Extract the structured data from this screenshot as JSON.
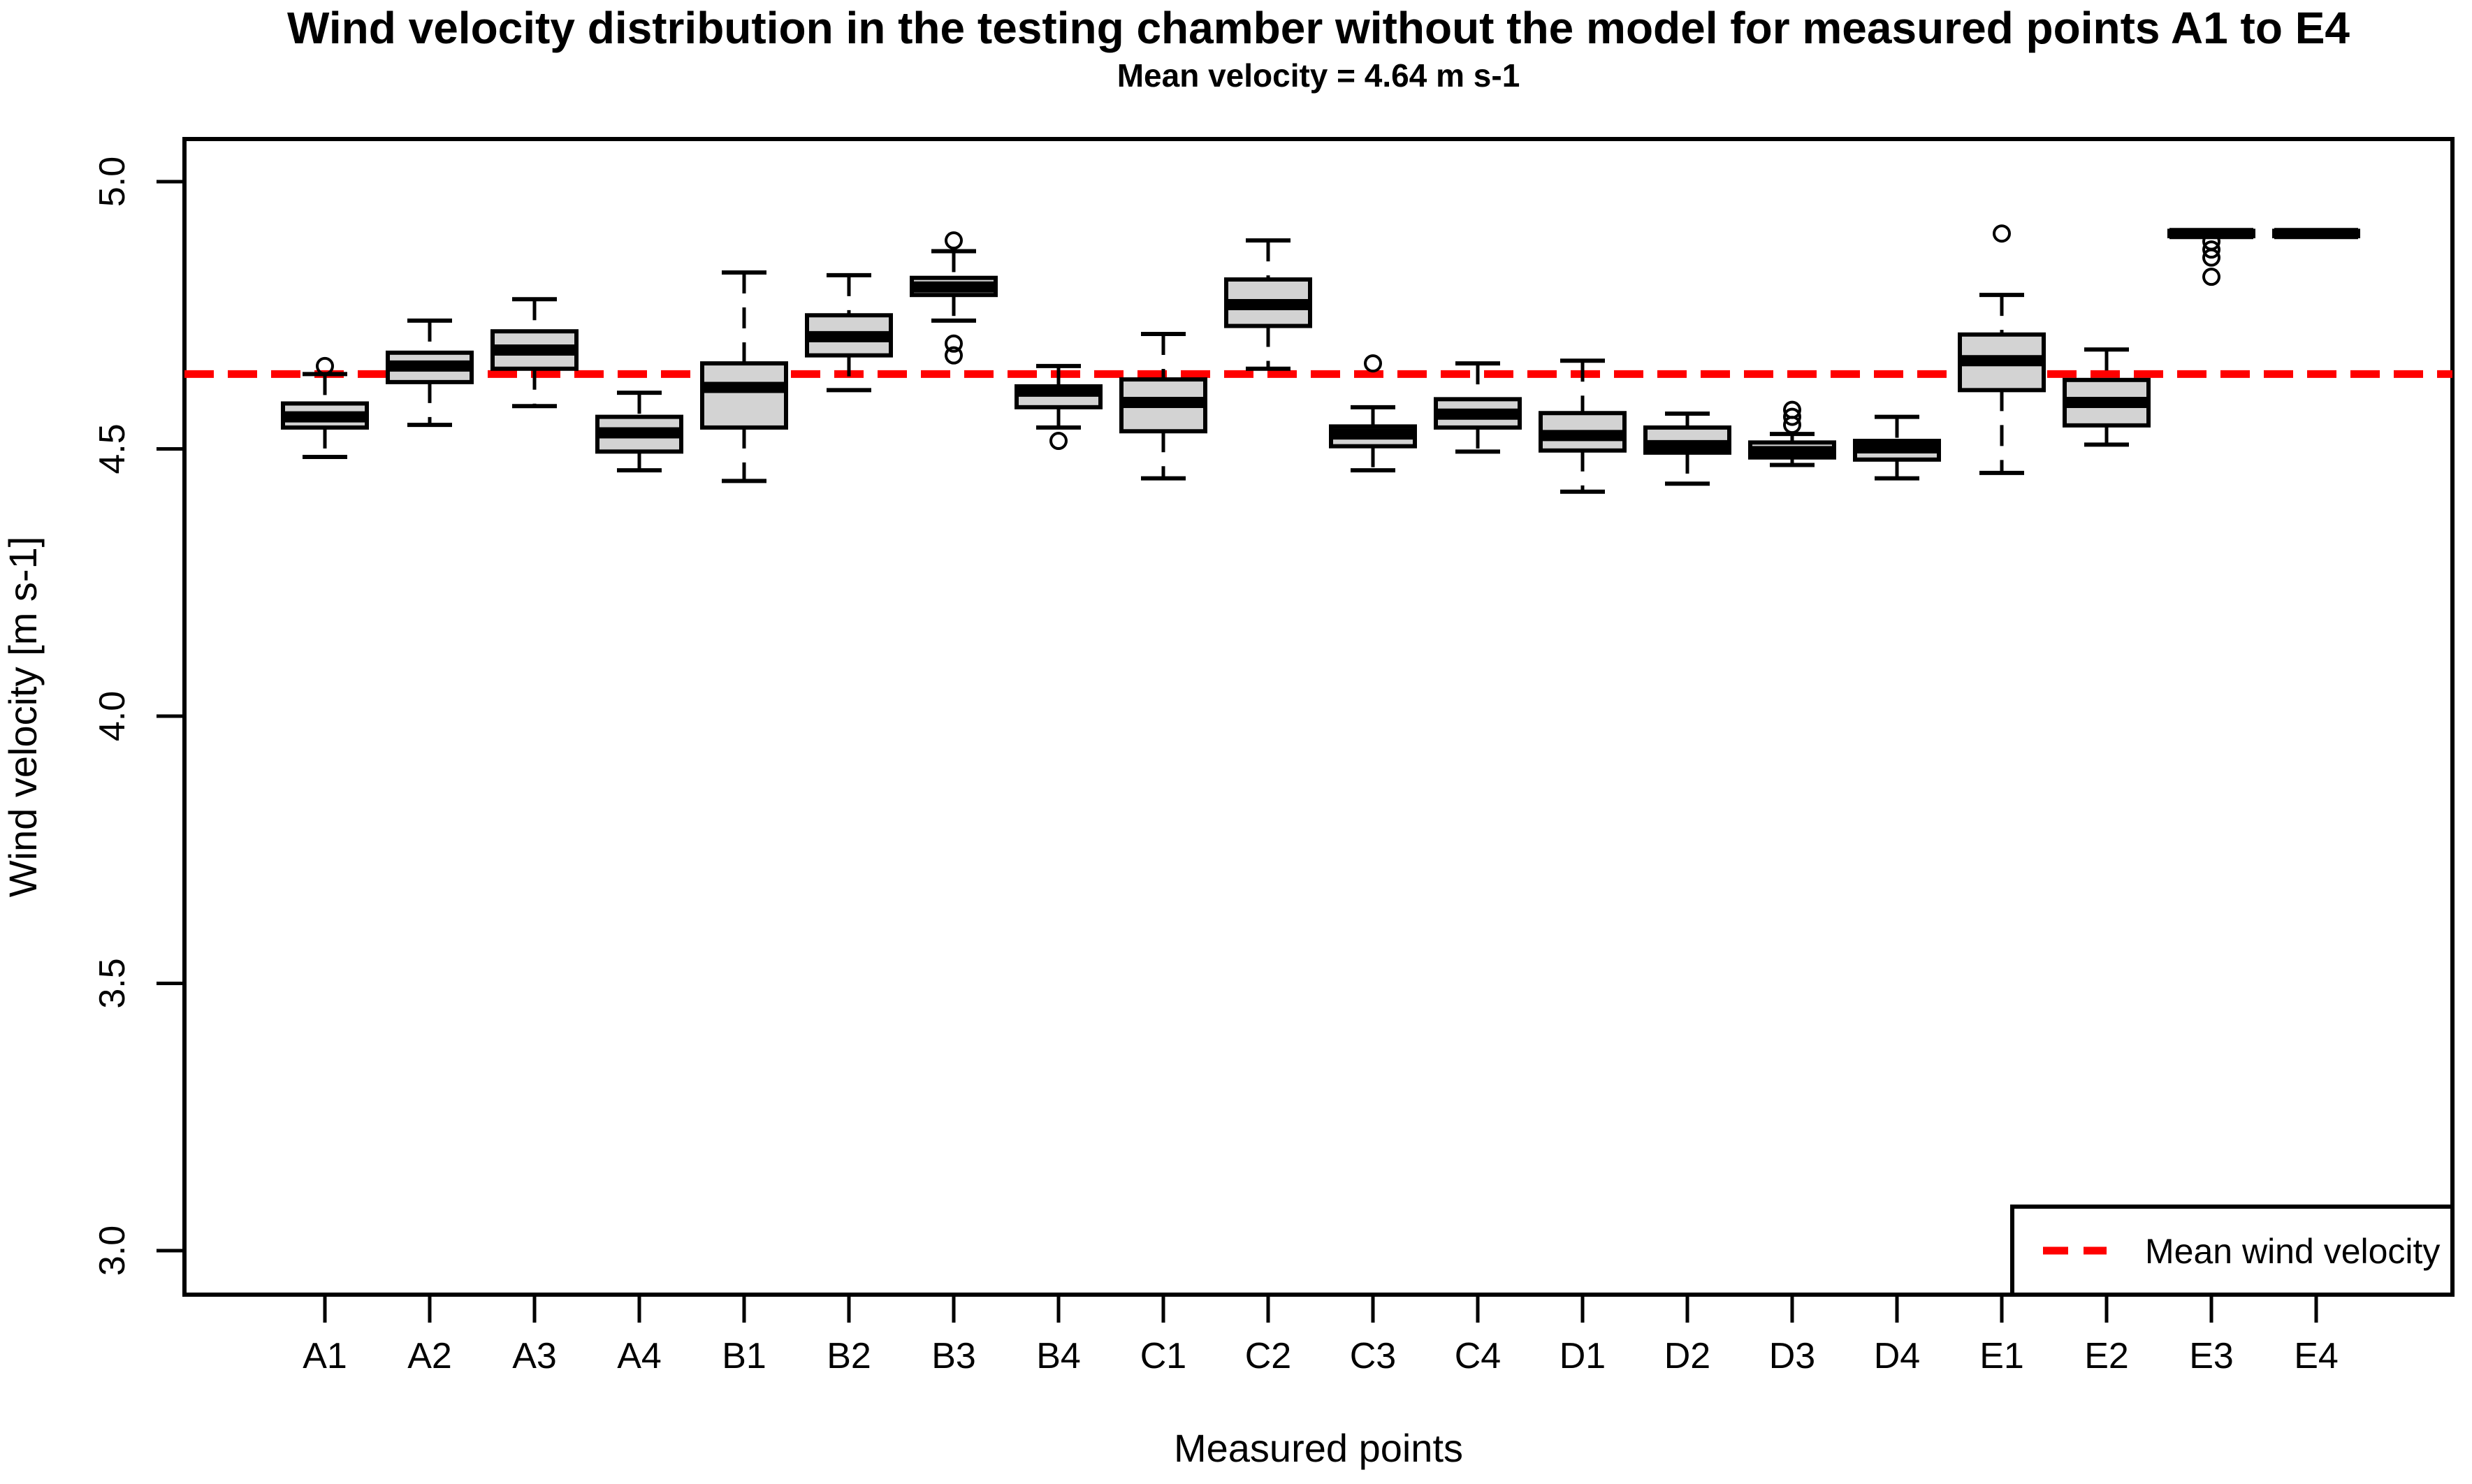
{
  "title": "Wind velocity distribution in the testing chamber without the model for measured points A1 to E4",
  "subtitle": "Mean velocity = 4.64 m s-1",
  "axes": {
    "x_label": "Measured points",
    "y_label": "Wind velocity [m s-1]",
    "y_ticks": [
      {
        "label": "5.0",
        "value": 5.0
      },
      {
        "label": "4.5",
        "value": 4.5
      },
      {
        "label": "4.0",
        "value": 4.0
      },
      {
        "label": "3.5",
        "value": 3.5
      },
      {
        "label": "3.0",
        "value": 3.0
      }
    ]
  },
  "legend": {
    "label": "Mean wind velocity",
    "line_style": "dashed",
    "position": "bottom-right"
  },
  "colors": {
    "box_fill": "#d3d3d3",
    "stroke": "#000000",
    "mean_line": "#ff0000",
    "background": "#ffffff"
  },
  "chart_data": {
    "type": "boxplot",
    "title": "Wind velocity distribution in the testing chamber without the model for measured points A1 to E4",
    "subtitle": "Mean velocity = 4.64 m s-1",
    "xlabel": "Measured points",
    "ylabel": "Wind velocity [m s-1]",
    "ylim": [
      2.92,
      5.08
    ],
    "y_tick_values": [
      3.0,
      3.5,
      4.0,
      4.5,
      5.0
    ],
    "grid": false,
    "mean_line_value": 4.64,
    "legend_position": "bottom-right",
    "categories": [
      "A1",
      "A2",
      "A3",
      "A4",
      "B1",
      "B2",
      "B3",
      "B4",
      "C1",
      "C2",
      "C3",
      "C4",
      "D1",
      "D2",
      "D3",
      "D4",
      "E1",
      "E2",
      "E3",
      "E4"
    ],
    "boxes": [
      {
        "label": "A1",
        "whisker_low": 4.485,
        "q1": 4.54,
        "median": 4.56,
        "q3": 4.585,
        "whisker_high": 4.64,
        "outliers": [
          4.655
        ]
      },
      {
        "label": "A2",
        "whisker_low": 4.545,
        "q1": 4.625,
        "median": 4.655,
        "q3": 4.68,
        "whisker_high": 4.74,
        "outliers": []
      },
      {
        "label": "A3",
        "whisker_low": 4.58,
        "q1": 4.65,
        "median": 4.685,
        "q3": 4.72,
        "whisker_high": 4.78,
        "outliers": []
      },
      {
        "label": "A4",
        "whisker_low": 4.46,
        "q1": 4.495,
        "median": 4.53,
        "q3": 4.56,
        "whisker_high": 4.605,
        "outliers": []
      },
      {
        "label": "B1",
        "whisker_low": 4.44,
        "q1": 4.54,
        "median": 4.615,
        "q3": 4.66,
        "whisker_high": 4.83,
        "outliers": []
      },
      {
        "label": "B2",
        "whisker_low": 4.61,
        "q1": 4.675,
        "median": 4.71,
        "q3": 4.75,
        "whisker_high": 4.825,
        "outliers": []
      },
      {
        "label": "B3",
        "whisker_low": 4.74,
        "q1": 4.788,
        "median": 4.803,
        "q3": 4.82,
        "whisker_high": 4.87,
        "outliers": [
          4.89,
          4.697,
          4.675
        ]
      },
      {
        "label": "B4",
        "whisker_low": 4.54,
        "q1": 4.578,
        "median": 4.608,
        "q3": 4.617,
        "whisker_high": 4.655,
        "outliers": [
          4.515
        ]
      },
      {
        "label": "C1",
        "whisker_low": 4.445,
        "q1": 4.533,
        "median": 4.587,
        "q3": 4.63,
        "whisker_high": 4.715,
        "outliers": []
      },
      {
        "label": "C2",
        "whisker_low": 4.65,
        "q1": 4.73,
        "median": 4.77,
        "q3": 4.817,
        "whisker_high": 4.89,
        "outliers": []
      },
      {
        "label": "C3",
        "whisker_low": 4.46,
        "q1": 4.505,
        "median": 4.528,
        "q3": 4.542,
        "whisker_high": 4.578,
        "outliers": [
          4.66
        ]
      },
      {
        "label": "C4",
        "whisker_low": 4.495,
        "q1": 4.54,
        "median": 4.565,
        "q3": 4.593,
        "whisker_high": 4.66,
        "outliers": []
      },
      {
        "label": "D1",
        "whisker_low": 4.42,
        "q1": 4.497,
        "median": 4.525,
        "q3": 4.567,
        "whisker_high": 4.665,
        "outliers": []
      },
      {
        "label": "D2",
        "whisker_low": 4.435,
        "q1": 4.493,
        "median": 4.506,
        "q3": 4.54,
        "whisker_high": 4.566,
        "outliers": []
      },
      {
        "label": "D3",
        "whisker_low": 4.47,
        "q1": 4.484,
        "median": 4.495,
        "q3": 4.512,
        "whisker_high": 4.528,
        "outliers": [
          4.545,
          4.56,
          4.573
        ]
      },
      {
        "label": "D4",
        "whisker_low": 4.445,
        "q1": 4.48,
        "median": 4.502,
        "q3": 4.515,
        "whisker_high": 4.56,
        "outliers": []
      },
      {
        "label": "E1",
        "whisker_low": 4.455,
        "q1": 4.61,
        "median": 4.665,
        "q3": 4.714,
        "whisker_high": 4.788,
        "outliers": [
          4.903
        ]
      },
      {
        "label": "E2",
        "whisker_low": 4.508,
        "q1": 4.544,
        "median": 4.587,
        "q3": 4.629,
        "whisker_high": 4.686,
        "outliers": []
      },
      {
        "label": "E3",
        "whisker_low": null,
        "q1": 4.898,
        "median": 4.903,
        "q3": 4.908,
        "whisker_high": null,
        "outliers": [
          4.888,
          4.873,
          4.858,
          4.822
        ]
      },
      {
        "label": "E4",
        "whisker_low": null,
        "q1": 4.898,
        "median": 4.903,
        "q3": 4.908,
        "whisker_high": null,
        "outliers": []
      }
    ]
  }
}
